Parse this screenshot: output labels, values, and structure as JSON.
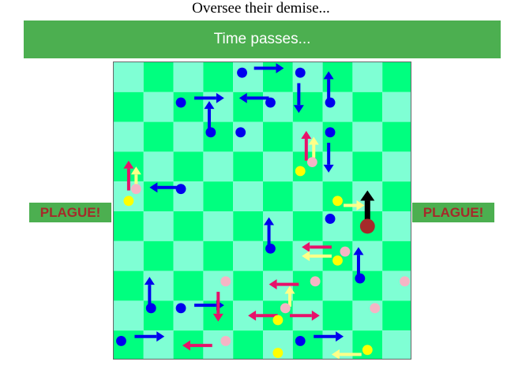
{
  "header": {
    "title": "Oversee their demise..."
  },
  "action_button": {
    "label": "Time passes...",
    "color": "#4caf50"
  },
  "plague_buttons": {
    "left_label": "PLAGUE!",
    "right_label": "PLAGUE!",
    "bg_color": "#4caf50",
    "text_color": "#a52a2a"
  },
  "board": {
    "rows": 10,
    "cols": 10,
    "colors": {
      "light": "#7fffd4",
      "dark": "#00ff7f"
    },
    "piece_colors": {
      "blue": "#0000ee",
      "pink": "#f5b5c5",
      "yellow": "#ffff00",
      "infected": "#a52a2a"
    },
    "arrow_colors": {
      "blue": "#0000ee",
      "magenta": "#e8106a",
      "yellow": "#ffff88",
      "black": "#000000"
    },
    "pieces": [
      {
        "c": "blue",
        "x": 4.3,
        "y": 0.35
      },
      {
        "c": "blue",
        "x": 6.25,
        "y": 0.35
      },
      {
        "c": "blue",
        "x": 2.25,
        "y": 1.35
      },
      {
        "c": "blue",
        "x": 5.25,
        "y": 1.35
      },
      {
        "c": "blue",
        "x": 7.25,
        "y": 1.35
      },
      {
        "c": "blue",
        "x": 3.25,
        "y": 2.35
      },
      {
        "c": "blue",
        "x": 4.25,
        "y": 2.35
      },
      {
        "c": "blue",
        "x": 7.25,
        "y": 2.35
      },
      {
        "c": "pink",
        "x": 6.65,
        "y": 3.35
      },
      {
        "c": "yellow",
        "x": 6.25,
        "y": 3.65
      },
      {
        "c": "pink",
        "x": 0.75,
        "y": 4.25
      },
      {
        "c": "yellow",
        "x": 0.5,
        "y": 4.65
      },
      {
        "c": "blue",
        "x": 2.25,
        "y": 4.25
      },
      {
        "c": "yellow",
        "x": 7.5,
        "y": 4.65
      },
      {
        "c": "blue",
        "x": 7.25,
        "y": 5.25
      },
      {
        "c": "infected",
        "x": 8.5,
        "y": 5.5,
        "r": 0.25
      },
      {
        "c": "blue",
        "x": 5.25,
        "y": 6.25
      },
      {
        "c": "pink",
        "x": 7.75,
        "y": 6.35
      },
      {
        "c": "yellow",
        "x": 7.5,
        "y": 6.65
      },
      {
        "c": "blue",
        "x": 8.25,
        "y": 7.25
      },
      {
        "c": "pink",
        "x": 3.75,
        "y": 7.35
      },
      {
        "c": "pink",
        "x": 6.75,
        "y": 7.35
      },
      {
        "c": "pink",
        "x": 9.75,
        "y": 7.35
      },
      {
        "c": "blue",
        "x": 1.25,
        "y": 8.25
      },
      {
        "c": "blue",
        "x": 2.25,
        "y": 8.25
      },
      {
        "c": "pink",
        "x": 5.75,
        "y": 8.25
      },
      {
        "c": "pink",
        "x": 8.75,
        "y": 8.25
      },
      {
        "c": "yellow",
        "x": 5.5,
        "y": 8.65
      },
      {
        "c": "blue",
        "x": 0.25,
        "y": 9.35
      },
      {
        "c": "pink",
        "x": 3.75,
        "y": 9.35
      },
      {
        "c": "blue",
        "x": 6.25,
        "y": 9.35
      },
      {
        "c": "yellow",
        "x": 5.5,
        "y": 9.75
      },
      {
        "c": "yellow",
        "x": 8.5,
        "y": 9.65
      }
    ],
    "arrows": [
      {
        "c": "blue",
        "x1": 4.7,
        "y1": 0.2,
        "x2": 5.7,
        "y2": 0.2
      },
      {
        "c": "blue",
        "x1": 7.2,
        "y1": 1.3,
        "x2": 7.2,
        "y2": 0.3
      },
      {
        "c": "blue",
        "x1": 2.7,
        "y1": 1.2,
        "x2": 3.7,
        "y2": 1.2
      },
      {
        "c": "blue",
        "x1": 5.2,
        "y1": 1.2,
        "x2": 4.2,
        "y2": 1.2
      },
      {
        "c": "blue",
        "x1": 6.2,
        "y1": 0.7,
        "x2": 6.2,
        "y2": 1.7
      },
      {
        "c": "blue",
        "x1": 3.2,
        "y1": 2.3,
        "x2": 3.2,
        "y2": 1.3
      },
      {
        "c": "magenta",
        "x1": 6.45,
        "y1": 3.3,
        "x2": 6.45,
        "y2": 2.3
      },
      {
        "c": "yellow",
        "x1": 6.7,
        "y1": 3.2,
        "x2": 6.7,
        "y2": 2.5
      },
      {
        "c": "blue",
        "x1": 7.2,
        "y1": 2.7,
        "x2": 7.2,
        "y2": 3.7
      },
      {
        "c": "magenta",
        "x1": 0.5,
        "y1": 4.3,
        "x2": 0.5,
        "y2": 3.3
      },
      {
        "c": "yellow",
        "x1": 0.75,
        "y1": 4.1,
        "x2": 0.75,
        "y2": 3.5
      },
      {
        "c": "blue",
        "x1": 2.2,
        "y1": 4.2,
        "x2": 1.2,
        "y2": 4.2
      },
      {
        "c": "black",
        "x1": 8.5,
        "y1": 5.3,
        "x2": 8.5,
        "y2": 4.3
      },
      {
        "c": "yellow",
        "x1": 7.7,
        "y1": 4.8,
        "x2": 8.4,
        "y2": 4.8
      },
      {
        "c": "blue",
        "x1": 5.2,
        "y1": 6.2,
        "x2": 5.2,
        "y2": 5.2
      },
      {
        "c": "magenta",
        "x1": 7.3,
        "y1": 6.2,
        "x2": 6.3,
        "y2": 6.2
      },
      {
        "c": "yellow",
        "x1": 7.3,
        "y1": 6.5,
        "x2": 6.3,
        "y2": 6.5
      },
      {
        "c": "blue",
        "x1": 8.2,
        "y1": 7.2,
        "x2": 8.2,
        "y2": 6.2
      },
      {
        "c": "magenta",
        "x1": 6.2,
        "y1": 7.45,
        "x2": 5.2,
        "y2": 7.45
      },
      {
        "c": "yellow",
        "x1": 5.9,
        "y1": 8.2,
        "x2": 5.9,
        "y2": 7.5
      },
      {
        "c": "blue",
        "x1": 1.2,
        "y1": 8.2,
        "x2": 1.2,
        "y2": 7.2
      },
      {
        "c": "blue",
        "x1": 2.7,
        "y1": 8.15,
        "x2": 3.7,
        "y2": 8.15
      },
      {
        "c": "magenta",
        "x1": 3.5,
        "y1": 7.7,
        "x2": 3.5,
        "y2": 8.7
      },
      {
        "c": "magenta",
        "x1": 5.9,
        "y1": 8.5,
        "x2": 6.9,
        "y2": 8.5
      },
      {
        "c": "magenta",
        "x1": 5.5,
        "y1": 8.5,
        "x2": 4.5,
        "y2": 8.5
      },
      {
        "c": "blue",
        "x1": 0.7,
        "y1": 9.2,
        "x2": 1.7,
        "y2": 9.2
      },
      {
        "c": "magenta",
        "x1": 3.3,
        "y1": 9.5,
        "x2": 2.3,
        "y2": 9.5
      },
      {
        "c": "blue",
        "x1": 6.7,
        "y1": 9.2,
        "x2": 7.7,
        "y2": 9.2
      },
      {
        "c": "yellow",
        "x1": 8.3,
        "y1": 9.8,
        "x2": 7.3,
        "y2": 9.8
      }
    ]
  }
}
